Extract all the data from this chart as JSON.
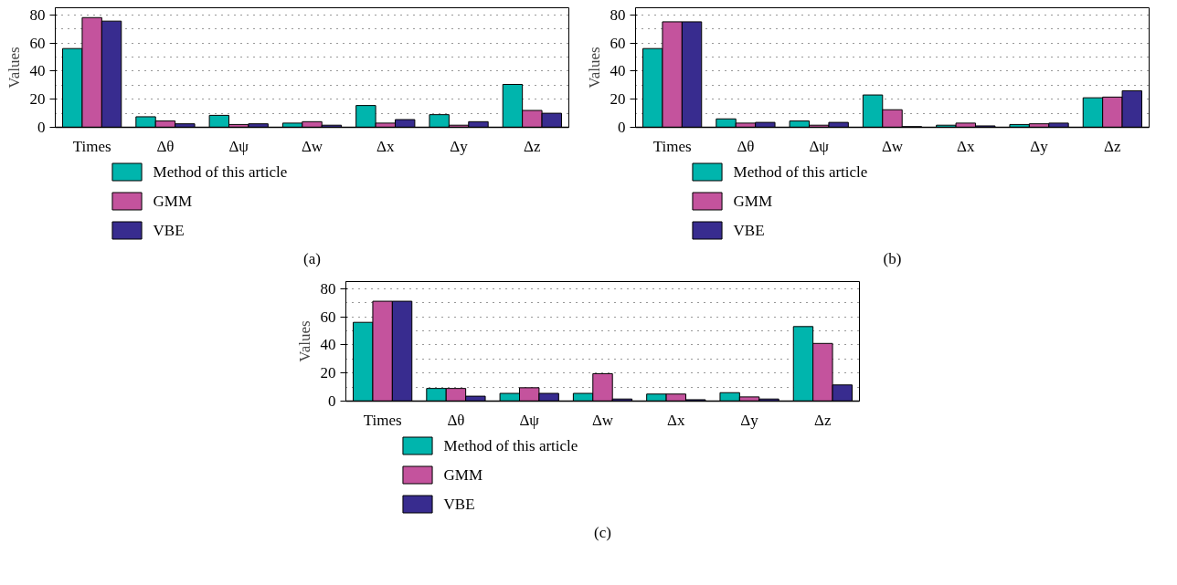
{
  "chart_data": [
    {
      "type": "bar",
      "ylabel": "Values",
      "categories": [
        "Times",
        "Δθ",
        "Δψ",
        "Δw",
        "Δx",
        "Δy",
        "Δz"
      ],
      "ylim": [
        0,
        85
      ],
      "yticks": [
        0,
        20,
        40,
        60,
        80
      ],
      "grid": true,
      "legend": "bottom left",
      "annotations": [
        "(a)"
      ],
      "series": [
        {
          "name": "Method of this article",
          "color": "#00b5ad",
          "values": [
            56,
            7.5,
            8.5,
            3,
            15.5,
            9,
            30.5
          ]
        },
        {
          "name": "GMM",
          "color": "#c4539d",
          "values": [
            78,
            4.5,
            2,
            4,
            3,
            1.5,
            12
          ]
        },
        {
          "name": "VBE",
          "color": "#382c8f",
          "values": [
            75.5,
            2.5,
            2.5,
            1.5,
            5.5,
            4,
            10
          ]
        }
      ]
    },
    {
      "type": "bar",
      "ylabel": "Values",
      "categories": [
        "Times",
        "Δθ",
        "Δψ",
        "Δw",
        "Δx",
        "Δy",
        "Δz"
      ],
      "ylim": [
        0,
        85
      ],
      "yticks": [
        0,
        20,
        40,
        60,
        80
      ],
      "grid": true,
      "legend": "bottom left",
      "annotations": [
        "(b)"
      ],
      "series": [
        {
          "name": "Method of this article",
          "color": "#00b5ad",
          "values": [
            56,
            6,
            4.5,
            23,
            1.5,
            2,
            21
          ]
        },
        {
          "name": "GMM",
          "color": "#c4539d",
          "values": [
            75,
            3,
            1.5,
            12.5,
            3,
            2.5,
            21.5
          ]
        },
        {
          "name": "VBE",
          "color": "#382c8f",
          "values": [
            75,
            3.5,
            3.5,
            0.5,
            1,
            3,
            26
          ]
        }
      ]
    },
    {
      "type": "bar",
      "ylabel": "Values",
      "categories": [
        "Times",
        "Δθ",
        "Δψ",
        "Δw",
        "Δx",
        "Δy",
        "Δz"
      ],
      "ylim": [
        0,
        85
      ],
      "yticks": [
        0,
        20,
        40,
        60,
        80
      ],
      "grid": true,
      "legend": "bottom left",
      "annotations": [
        "(c)"
      ],
      "series": [
        {
          "name": "Method of this article",
          "color": "#00b5ad",
          "values": [
            56,
            9,
            5.5,
            5.5,
            5,
            6,
            53
          ]
        },
        {
          "name": "GMM",
          "color": "#c4539d",
          "values": [
            71,
            9,
            9.5,
            19.5,
            5,
            3,
            41
          ]
        },
        {
          "name": "VBE",
          "color": "#382c8f",
          "values": [
            71,
            3.5,
            5.5,
            1.5,
            1,
            1.5,
            11.5
          ]
        }
      ]
    }
  ]
}
